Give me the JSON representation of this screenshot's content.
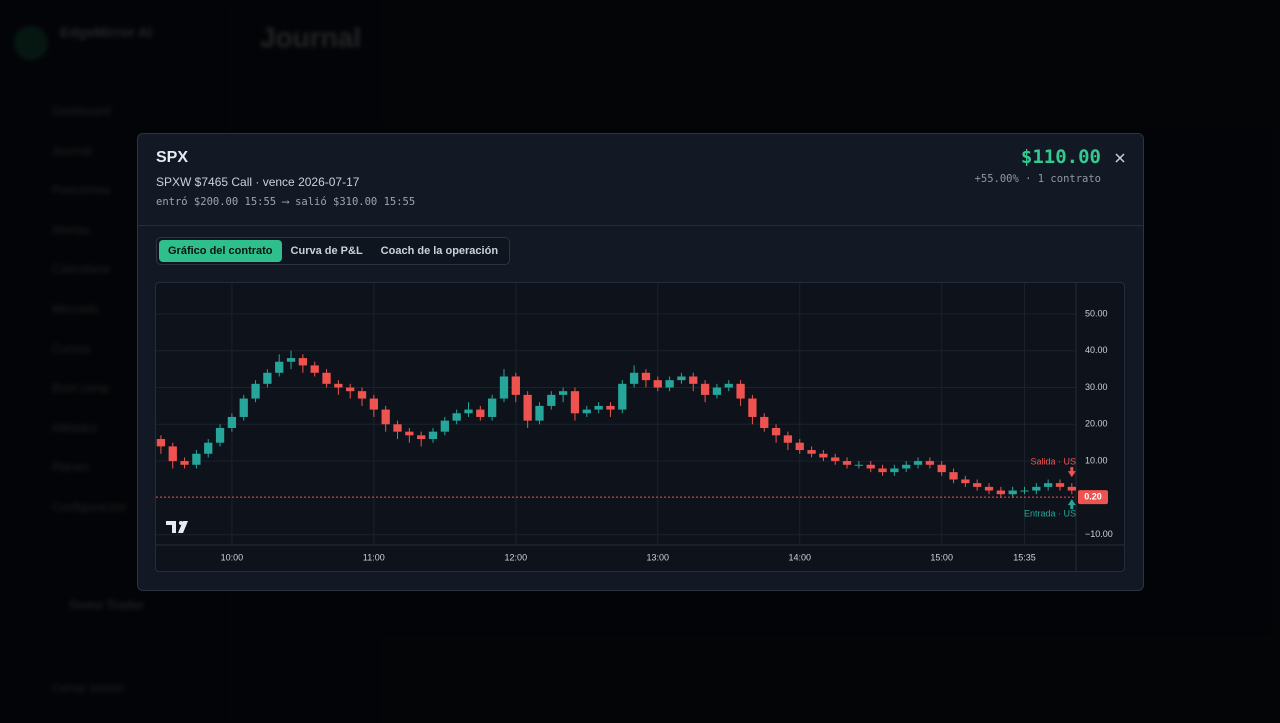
{
  "sidebar": {
    "brand": "EdgeMirror AI",
    "nav": [
      "Dashboard",
      "Journal",
      "Posiciones",
      "Alertas",
      "Calendario",
      "Mercado",
      "Cursos",
      "Boot camp",
      "Afiliados",
      "Planes",
      "Configuración"
    ],
    "user": "Demo Trader",
    "logout": "Cerrar sesión"
  },
  "page": {
    "title": "Journal"
  },
  "modal": {
    "symbol": "SPX",
    "contract": "SPXW $7465 Call · vence 2026-07-17",
    "trade": "entró $200.00 15:55 ⟶ salió $310.00 15:55",
    "pnl": "$110.00",
    "pnl_detail": "+55.00% · 1 contrato",
    "tabs": [
      "Gráfico del contrato",
      "Curva de P&L",
      "Coach de la operación"
    ]
  },
  "chart_data": {
    "type": "candlestick",
    "categories": [
      null,
      null,
      null,
      null,
      null,
      null,
      "10:00",
      null,
      null,
      null,
      null,
      null,
      null,
      null,
      null,
      null,
      null,
      null,
      "11:00",
      null,
      null,
      null,
      null,
      null,
      null,
      null,
      null,
      null,
      null,
      null,
      "12:00",
      null,
      null,
      null,
      null,
      null,
      null,
      null,
      null,
      null,
      null,
      null,
      "13:00",
      null,
      null,
      null,
      null,
      null,
      null,
      null,
      null,
      null,
      null,
      null,
      "14:00",
      null,
      null,
      null,
      null,
      null,
      null,
      null,
      null,
      null,
      null,
      null,
      "15:00",
      null,
      null,
      null,
      null,
      null,
      null,
      "15:35",
      null,
      null,
      null,
      null
    ],
    "open": [
      16,
      14,
      10,
      9,
      12,
      15,
      19,
      22,
      27,
      31,
      34,
      37,
      38,
      36,
      34,
      31,
      30,
      29,
      27,
      24,
      20,
      18,
      17,
      16,
      18,
      21,
      23,
      24,
      22,
      27,
      33,
      28,
      21,
      25,
      28,
      29,
      23,
      24,
      25,
      24,
      31,
      34,
      32,
      30,
      32,
      33,
      31,
      28,
      30,
      31,
      27,
      22,
      19,
      17,
      15,
      13,
      12,
      11,
      10,
      9,
      9,
      8,
      7,
      8,
      9,
      10,
      9,
      7,
      5,
      4,
      3,
      2,
      1,
      2,
      2,
      3,
      4,
      3
    ],
    "high": [
      17,
      15,
      11,
      13,
      16,
      20,
      23,
      28,
      32,
      35,
      39,
      40,
      39,
      37,
      35,
      32,
      31,
      30,
      28,
      25,
      21,
      19,
      18,
      19,
      22,
      24,
      26,
      25,
      28,
      35,
      34,
      29,
      26,
      29,
      30,
      30,
      25,
      26,
      26,
      32,
      36,
      35,
      33,
      33,
      34,
      34,
      32,
      31,
      32,
      32,
      28,
      23,
      20,
      18,
      16,
      14,
      13,
      12,
      11,
      10,
      10,
      9,
      9,
      10,
      11,
      11,
      10,
      8,
      6,
      5,
      4,
      3,
      3,
      3,
      4,
      5,
      5,
      4
    ],
    "low": [
      12,
      8,
      8,
      8,
      11,
      14,
      18,
      21,
      26,
      30,
      33,
      35,
      34,
      33,
      30,
      28,
      27,
      25,
      22,
      18,
      16,
      15,
      14,
      15,
      17,
      20,
      22,
      21,
      21,
      26,
      26,
      19,
      20,
      24,
      26,
      21,
      22,
      23,
      22,
      23,
      30,
      30,
      29,
      29,
      31,
      29,
      26,
      27,
      29,
      25,
      20,
      18,
      15,
      13,
      12,
      11,
      10,
      9,
      8,
      8,
      7,
      6,
      6,
      7,
      8,
      8,
      6,
      4,
      3,
      2,
      1,
      0,
      0,
      1,
      1,
      2,
      2,
      1
    ],
    "close": [
      14,
      10,
      9,
      12,
      15,
      19,
      22,
      27,
      31,
      34,
      37,
      38,
      36,
      34,
      31,
      30,
      29,
      27,
      24,
      20,
      18,
      17,
      16,
      18,
      21,
      23,
      24,
      22,
      27,
      33,
      28,
      21,
      25,
      28,
      29,
      23,
      24,
      25,
      24,
      31,
      34,
      32,
      30,
      32,
      33,
      31,
      28,
      30,
      31,
      27,
      22,
      19,
      17,
      15,
      13,
      12,
      11,
      10,
      9,
      9,
      8,
      7,
      8,
      9,
      10,
      9,
      7,
      5,
      4,
      3,
      2,
      1,
      2,
      2,
      3,
      4,
      3,
      2
    ],
    "up_color": "#26a69a",
    "down_color": "#ef5350",
    "ylim": [
      -12.8,
      58.4
    ],
    "yticks": [
      {
        "value": 50,
        "label": "50.00"
      },
      {
        "value": 40,
        "label": "40.00"
      },
      {
        "value": 30,
        "label": "30.00"
      },
      {
        "value": 20,
        "label": "20.00"
      },
      {
        "value": 10,
        "label": "10.00"
      },
      {
        "value": -10,
        "label": "−10.00"
      }
    ],
    "grid": true,
    "price_line": {
      "value": 0.2,
      "label": "0.20"
    },
    "annotations": {
      "exit": "Salida · US",
      "entry": "Entrada · US"
    }
  }
}
